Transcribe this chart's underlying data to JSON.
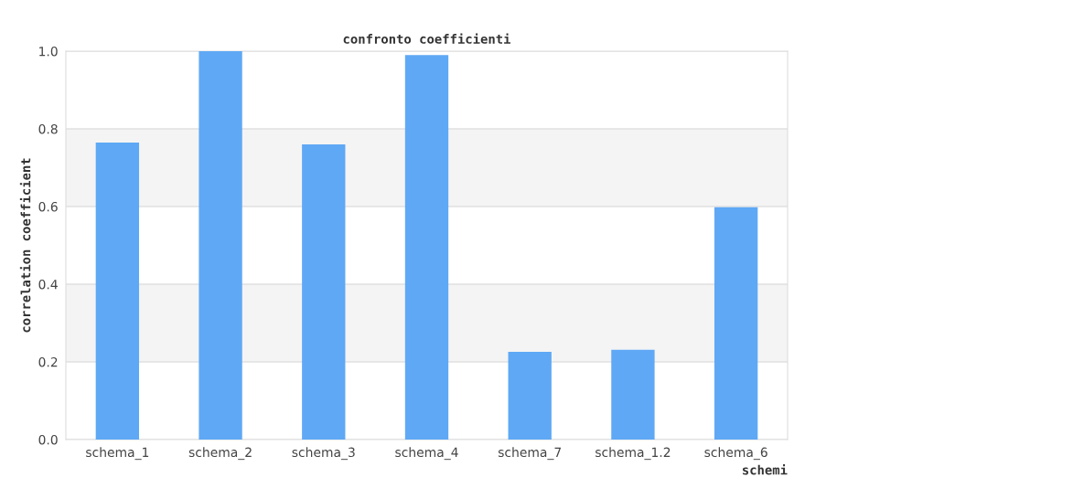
{
  "chart_data": {
    "type": "bar",
    "title": "confronto coefficienti",
    "xlabel": "schemi",
    "ylabel": "correlation coefficient",
    "categories": [
      "schema_1",
      "schema_2",
      "schema_3",
      "schema_4",
      "schema_7",
      "schema_1.2",
      "schema_6"
    ],
    "values": [
      0.765,
      1.0,
      0.76,
      0.99,
      0.226,
      0.231,
      0.598
    ],
    "color": "#5fa8f5",
    "ylim": [
      0,
      1.0
    ],
    "yticks": [
      {
        "value": 0,
        "label": "0.0"
      },
      {
        "value": 0.2,
        "label": "0.2"
      },
      {
        "value": 0.4,
        "label": "0.4"
      },
      {
        "value": 0.6,
        "label": "0.6"
      },
      {
        "value": 0.8,
        "label": "0.8"
      },
      {
        "value": 1.0,
        "label": "1.0"
      }
    ],
    "grid": "y"
  }
}
